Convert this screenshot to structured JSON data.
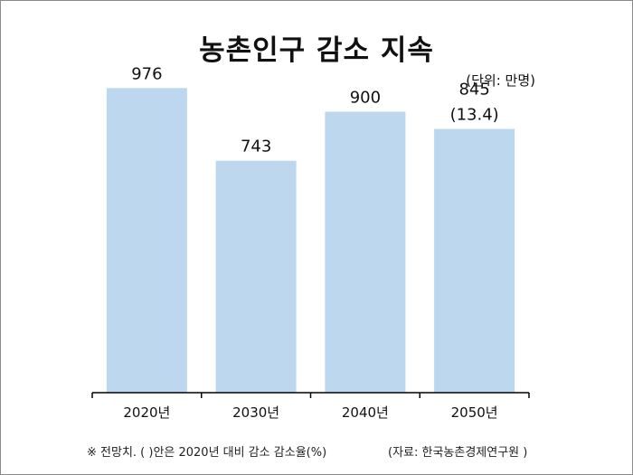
{
  "title": "농촌인구 감소 지속",
  "unit_note": "(단위: 만명)",
  "footnote": "※ 전망치. ( )안은 2020년 대비 감소 감소율(%)",
  "source": "(자료: 한국농촌경제연구원 )",
  "colors": {
    "bar": "#bdd7ee",
    "axis": "#000000",
    "text": "#111111"
  },
  "chart_data": {
    "type": "bar",
    "categories": [
      "2020년",
      "2030년",
      "2040년",
      "2050년"
    ],
    "values": [
      976,
      743,
      900,
      845
    ],
    "value_labels": [
      "976",
      "743",
      "900",
      "845"
    ],
    "sub_labels": [
      "",
      "",
      "",
      "(13.4)"
    ],
    "ylim": [
      0,
      1200
    ],
    "grid": false,
    "xlabel": "",
    "ylabel": ""
  }
}
